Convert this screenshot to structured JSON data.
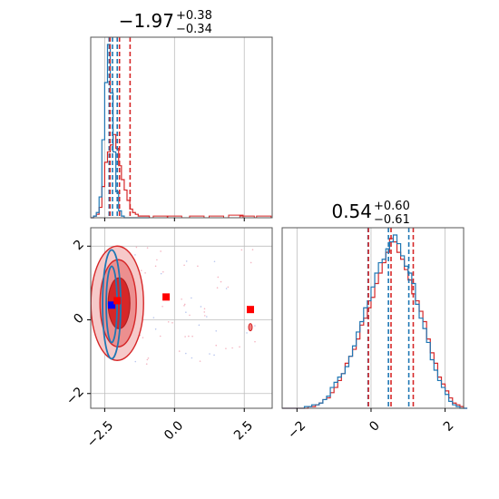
{
  "colors": {
    "red": "#d62728",
    "blue": "#1f77b4",
    "marker_red": "#ff0000",
    "marker_blue": "#0000ff",
    "grid": "#bdbdbd"
  },
  "titles": {
    "param1": {
      "main": "−1.97",
      "sup": "+0.38",
      "sub": "−0.34"
    },
    "param2": {
      "main": "0.54",
      "sup": "+0.60",
      "sub": "−0.61"
    }
  },
  "chart_data": {
    "type": "corner",
    "grid": true,
    "x1_ticks": [
      "−2.5",
      "0.0",
      "2.5"
    ],
    "x1_tick_values": [
      -2.5,
      0.0,
      2.5
    ],
    "x1_range": [
      -3.0,
      3.5
    ],
    "x2_ticks": [
      "−2",
      "0",
      "2"
    ],
    "x2_tick_values": [
      -2,
      0,
      2
    ],
    "x2_range": [
      -2.4,
      2.5
    ],
    "hist1": {
      "bins": [
        -3.0,
        -2.9,
        -2.8,
        -2.7,
        -2.6,
        -2.5,
        -2.4,
        -2.3,
        -2.2,
        -2.1,
        -2.0,
        -1.9,
        -1.8,
        -1.7,
        -1.6,
        -1.5,
        -1.4,
        -1.3,
        -1.2,
        -1.1,
        -1.0,
        -0.9
      ],
      "blue": [
        0,
        0.01,
        0.03,
        0.12,
        0.45,
        0.78,
        1.0,
        0.72,
        0.38,
        0.15,
        0.04,
        0.01,
        0,
        0,
        0,
        0,
        0,
        0,
        0,
        0,
        0
      ],
      "red": [
        0,
        0.01,
        0.02,
        0.06,
        0.18,
        0.32,
        0.38,
        0.42,
        0.48,
        0.4,
        0.3,
        0.22,
        0.16,
        0.1,
        0.05,
        0.03,
        0.02,
        0.01,
        0.01,
        0.01,
        0.01
      ],
      "red_tail": [
        {
          "x": -0.5,
          "y": 0.01
        },
        {
          "x": 0.0,
          "y": 0.01
        },
        {
          "x": 0.8,
          "y": 0.01
        },
        {
          "x": 1.5,
          "y": 0.01
        },
        {
          "x": 2.2,
          "y": 0.015
        },
        {
          "x": 2.6,
          "y": 0.01
        },
        {
          "x": 3.2,
          "y": 0.01
        }
      ],
      "blue_quantiles": [
        -2.34,
        -2.22,
        -2.05
      ],
      "red_quantiles": [
        -2.31,
        -1.97,
        -1.59
      ]
    },
    "hist2": {
      "bin_start": -2.4,
      "bin_width": 0.1,
      "blue": [
        0,
        0,
        0,
        0,
        0,
        0,
        0.01,
        0.01,
        0.02,
        0.02,
        0.03,
        0.05,
        0.07,
        0.12,
        0.15,
        0.18,
        0.2,
        0.24,
        0.3,
        0.36,
        0.44,
        0.5,
        0.58,
        0.62,
        0.7,
        0.78,
        0.84,
        0.86,
        0.92,
        0.96,
        1.0,
        0.95,
        0.88,
        0.82,
        0.78,
        0.72,
        0.6,
        0.52,
        0.46,
        0.38,
        0.28,
        0.22,
        0.16,
        0.12,
        0.08,
        0.04,
        0.02,
        0.01,
        0,
        0
      ],
      "red": [
        0,
        0,
        0,
        0,
        0,
        0,
        0,
        0.01,
        0.01,
        0.02,
        0.03,
        0.05,
        0.06,
        0.09,
        0.12,
        0.16,
        0.2,
        0.26,
        0.3,
        0.34,
        0.4,
        0.48,
        0.52,
        0.58,
        0.64,
        0.72,
        0.78,
        0.84,
        0.9,
        0.98,
        0.96,
        0.9,
        0.86,
        0.8,
        0.74,
        0.66,
        0.62,
        0.56,
        0.5,
        0.4,
        0.32,
        0.26,
        0.18,
        0.14,
        0.1,
        0.06,
        0.03,
        0.02,
        0.01,
        0
      ],
      "blue_quantiles": [
        -0.08,
        0.47,
        1.02
      ],
      "red_quantiles": [
        -0.07,
        0.54,
        1.14
      ]
    },
    "markers_2d": [
      {
        "x": -2.25,
        "y": 0.4,
        "color": "blue"
      },
      {
        "x": -2.05,
        "y": 0.52,
        "color": "red"
      },
      {
        "x": -0.3,
        "y": 0.62,
        "color": "red"
      },
      {
        "x": 2.72,
        "y": 0.28,
        "color": "red"
      }
    ]
  }
}
